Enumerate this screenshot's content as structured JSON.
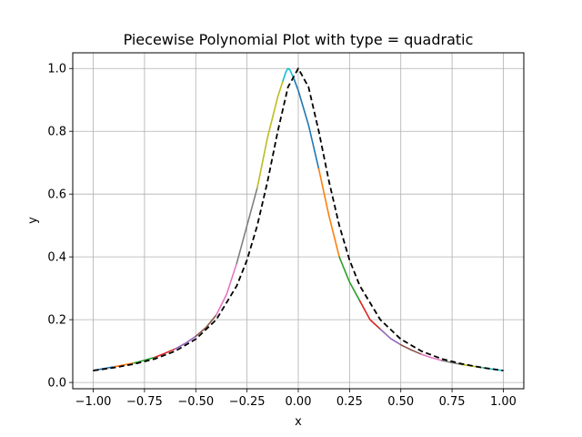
{
  "chart_data": {
    "type": "line",
    "title": "Piecewise Polynomial Plot with type = quadratic",
    "xlabel": "x",
    "ylabel": "y",
    "xlim": [
      -1.1,
      1.1
    ],
    "ylim": [
      -0.02,
      1.05
    ],
    "grid": true,
    "x_ticks": [
      -1.0,
      -0.75,
      -0.5,
      -0.25,
      0.0,
      0.25,
      0.5,
      0.75,
      1.0
    ],
    "x_tick_labels": [
      "−1.00",
      "−0.75",
      "−0.50",
      "−0.25",
      "0.00",
      "0.25",
      "0.50",
      "0.75",
      "1.00"
    ],
    "y_ticks": [
      0.0,
      0.2,
      0.4,
      0.6,
      0.8,
      1.0
    ],
    "y_tick_labels": [
      "0.0",
      "0.2",
      "0.4",
      "0.6",
      "0.8",
      "1.0"
    ],
    "reference_curve": {
      "style": "dashed",
      "color": "#000000",
      "x": [
        -1.0,
        -0.9,
        -0.8,
        -0.7,
        -0.6,
        -0.5,
        -0.4,
        -0.3,
        -0.25,
        -0.2,
        -0.15,
        -0.1,
        -0.05,
        0.0,
        0.05,
        0.1,
        0.15,
        0.2,
        0.25,
        0.3,
        0.4,
        0.5,
        0.6,
        0.7,
        0.8,
        0.9,
        1.0
      ],
      "y": [
        0.038,
        0.047,
        0.059,
        0.075,
        0.1,
        0.138,
        0.2,
        0.308,
        0.39,
        0.5,
        0.64,
        0.8,
        0.941,
        1.0,
        0.941,
        0.8,
        0.64,
        0.5,
        0.39,
        0.308,
        0.2,
        0.138,
        0.1,
        0.075,
        0.059,
        0.047,
        0.038
      ]
    },
    "segments": [
      {
        "color": "#1f77b4",
        "x": [
          -1.0,
          -0.95,
          -0.9
        ],
        "y": [
          0.038,
          0.044,
          0.05
        ]
      },
      {
        "color": "#ff7f0e",
        "x": [
          -0.9,
          -0.85,
          -0.8
        ],
        "y": [
          0.05,
          0.056,
          0.062
        ]
      },
      {
        "color": "#2ca02c",
        "x": [
          -0.8,
          -0.75,
          -0.7
        ],
        "y": [
          0.062,
          0.071,
          0.08
        ]
      },
      {
        "color": "#d62728",
        "x": [
          -0.7,
          -0.65,
          -0.6
        ],
        "y": [
          0.08,
          0.093,
          0.107
        ]
      },
      {
        "color": "#9467bd",
        "x": [
          -0.6,
          -0.55,
          -0.5
        ],
        "y": [
          0.107,
          0.125,
          0.147
        ]
      },
      {
        "color": "#8c564b",
        "x": [
          -0.5,
          -0.45,
          -0.4
        ],
        "y": [
          0.147,
          0.175,
          0.215
        ]
      },
      {
        "color": "#e377c2",
        "x": [
          -0.4,
          -0.35,
          -0.3
        ],
        "y": [
          0.215,
          0.28,
          0.38
        ]
      },
      {
        "color": "#7f7f7f",
        "x": [
          -0.3,
          -0.25,
          -0.2
        ],
        "y": [
          0.38,
          0.5,
          0.62
        ]
      },
      {
        "color": "#bcbd22",
        "x": [
          -0.2,
          -0.15,
          -0.1,
          -0.075
        ],
        "y": [
          0.62,
          0.78,
          0.91,
          0.96
        ]
      },
      {
        "color": "#17becf",
        "x": [
          -0.075,
          -0.06,
          -0.05,
          -0.04,
          -0.02
        ],
        "y": [
          0.96,
          0.99,
          1.0,
          0.995,
          0.965
        ]
      },
      {
        "color": "#1f77b4",
        "x": [
          -0.02,
          0.0,
          0.05,
          0.1
        ],
        "y": [
          0.965,
          0.93,
          0.82,
          0.68
        ]
      },
      {
        "color": "#ff7f0e",
        "x": [
          0.1,
          0.15,
          0.2
        ],
        "y": [
          0.68,
          0.53,
          0.4
        ]
      },
      {
        "color": "#2ca02c",
        "x": [
          0.2,
          0.25,
          0.3
        ],
        "y": [
          0.4,
          0.32,
          0.26
        ]
      },
      {
        "color": "#d62728",
        "x": [
          0.3,
          0.35,
          0.4
        ],
        "y": [
          0.26,
          0.2,
          0.17
        ]
      },
      {
        "color": "#9467bd",
        "x": [
          0.4,
          0.45,
          0.5
        ],
        "y": [
          0.17,
          0.14,
          0.12
        ]
      },
      {
        "color": "#8c564b",
        "x": [
          0.5,
          0.55,
          0.6
        ],
        "y": [
          0.12,
          0.104,
          0.09
        ]
      },
      {
        "color": "#e377c2",
        "x": [
          0.6,
          0.65,
          0.7
        ],
        "y": [
          0.09,
          0.079,
          0.07
        ]
      },
      {
        "color": "#7f7f7f",
        "x": [
          0.7,
          0.75,
          0.8
        ],
        "y": [
          0.07,
          0.063,
          0.057
        ]
      },
      {
        "color": "#bcbd22",
        "x": [
          0.8,
          0.85,
          0.9
        ],
        "y": [
          0.057,
          0.052,
          0.047
        ]
      },
      {
        "color": "#17becf",
        "x": [
          0.9,
          0.95,
          1.0
        ],
        "y": [
          0.047,
          0.042,
          0.038
        ]
      }
    ]
  }
}
